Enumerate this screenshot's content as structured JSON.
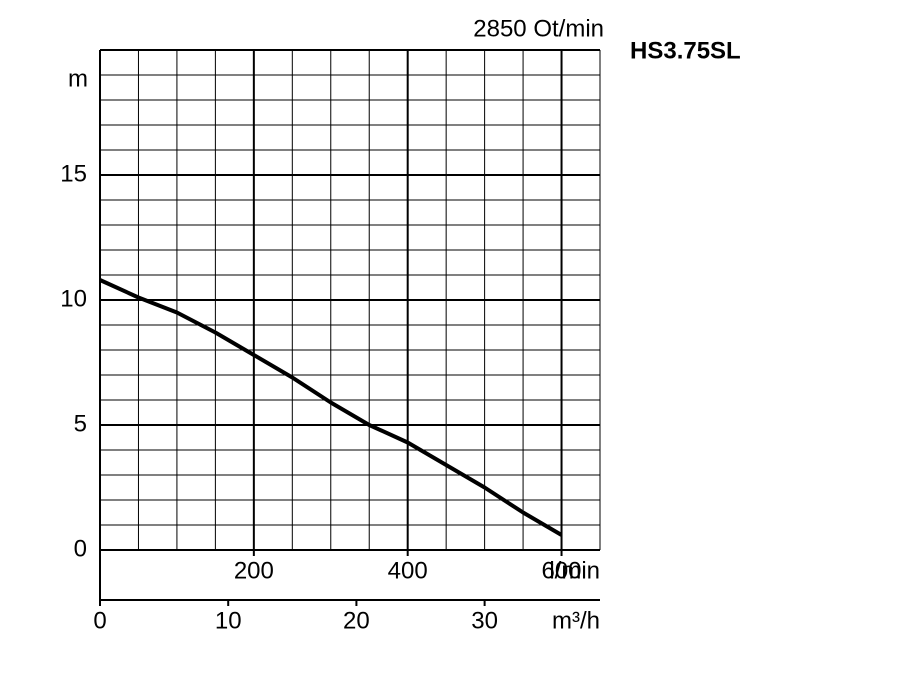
{
  "chart_data": {
    "type": "line",
    "title": "HS3.75SL",
    "subtitle": "2850 Ot/min",
    "ylabel": "m",
    "xlabel": "l/min",
    "x2label": "m³/h",
    "x": [
      0,
      50,
      100,
      150,
      200,
      250,
      300,
      350,
      400,
      450,
      500,
      550,
      600
    ],
    "series": [
      {
        "name": "HS3.75SL",
        "color": "#000000",
        "values": [
          10.8,
          10.1,
          9.5,
          8.7,
          7.8,
          6.9,
          5.9,
          5.0,
          4.3,
          3.4,
          2.5,
          1.5,
          0.6
        ]
      }
    ],
    "xlim": [
      0,
      650
    ],
    "xticks": [
      200,
      400,
      600
    ],
    "x_grid": [
      0,
      50,
      100,
      150,
      200,
      250,
      300,
      350,
      400,
      450,
      500,
      550,
      600,
      650
    ],
    "ylim": [
      0,
      20
    ],
    "yticks": [
      0,
      5,
      10,
      15
    ],
    "y_grid": [
      1,
      2,
      3,
      4,
      6,
      7,
      8,
      9,
      11,
      12,
      13,
      14,
      16,
      17,
      18,
      19,
      20
    ],
    "x2lim": [
      0,
      39
    ],
    "x2ticks": [
      0,
      10,
      20,
      30
    ],
    "grid": true
  }
}
